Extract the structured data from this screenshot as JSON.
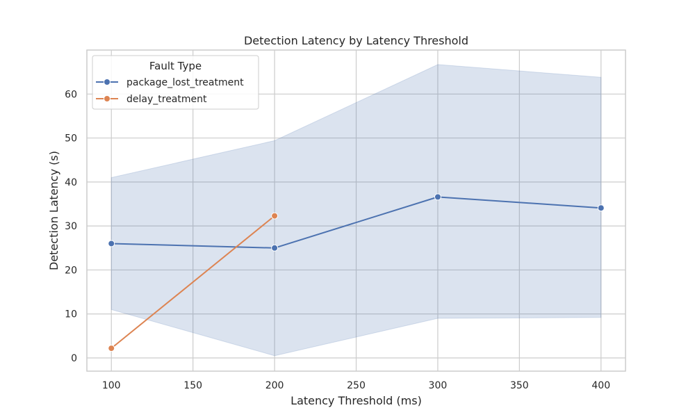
{
  "chart_data": {
    "type": "line",
    "title": "Detection Latency by Latency Threshold",
    "xlabel": "Latency Threshold (ms)",
    "ylabel": "Detection Latency (s)",
    "xlim": [
      85,
      415
    ],
    "ylim": [
      -3,
      70
    ],
    "x_ticks": [
      100,
      150,
      200,
      250,
      300,
      350,
      400
    ],
    "y_ticks": [
      0,
      10,
      20,
      30,
      40,
      50,
      60
    ],
    "grid": true,
    "legend": {
      "title": "Fault Type",
      "placement": "top-left"
    },
    "series": [
      {
        "name": "package_lost_treatment",
        "color": "#4c72b0",
        "band_color": "#4c72b0",
        "x": [
          100,
          200,
          300,
          400
        ],
        "values": [
          26,
          25,
          36.6,
          34.1
        ],
        "ci_lower": [
          11,
          0.5,
          9,
          9.2
        ],
        "ci_upper": [
          41,
          49.4,
          66.7,
          63.8
        ]
      },
      {
        "name": "delay_treatment",
        "color": "#dd8452",
        "x": [
          100,
          200
        ],
        "values": [
          2.2,
          32.3
        ]
      }
    ]
  }
}
